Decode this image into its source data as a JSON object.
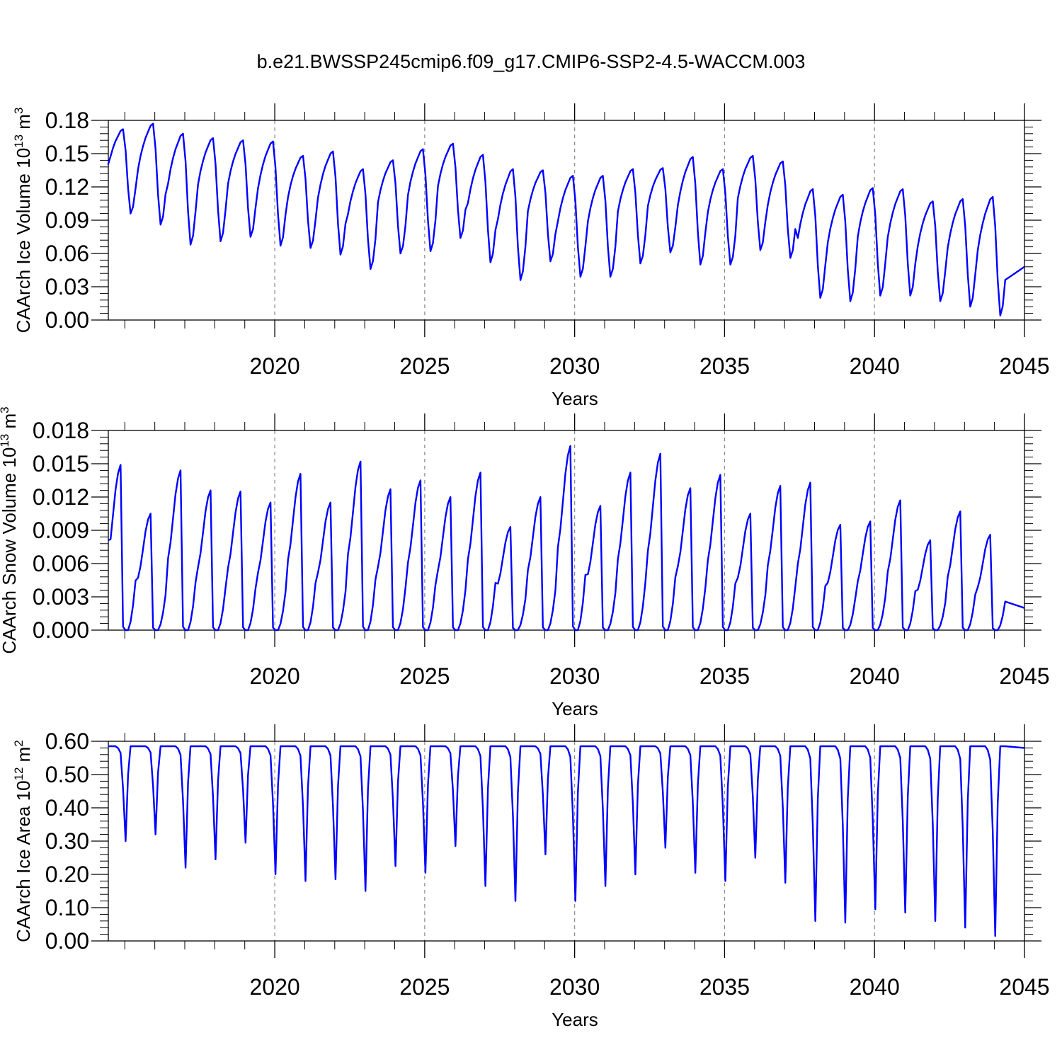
{
  "figure": {
    "title": "b.e21.BWSSP245cmip6.f09_g17.CMIP6-SSP2-4.5-WACCM.003"
  },
  "chart_data": [
    {
      "type": "line",
      "name": "ice-volume",
      "ylabel_main": "CAArch Ice Volume 10",
      "ylabel_exp": "13",
      "ylabel_unit": " m",
      "ylabel_unit_exp": "3",
      "xlabel": "Years",
      "xlim": [
        2015,
        2045
      ],
      "ylim": [
        0,
        0.18
      ],
      "xticks": [
        2020,
        2025,
        2030,
        2035,
        2040,
        2045
      ],
      "yticks": [
        "0.00",
        "0.03",
        "0.06",
        "0.09",
        "0.12",
        "0.15",
        "0.18"
      ],
      "color": "#0000ff",
      "annual_max": [
        0.172,
        0.177,
        0.168,
        0.164,
        0.162,
        0.161,
        0.148,
        0.152,
        0.136,
        0.144,
        0.154,
        0.159,
        0.149,
        0.136,
        0.135,
        0.13,
        0.13,
        0.136,
        0.137,
        0.147,
        0.136,
        0.148,
        0.143,
        0.118,
        0.113,
        0.119,
        0.118,
        0.107,
        0.109,
        0.111
      ],
      "annual_min": [
        0.096,
        0.086,
        0.068,
        0.071,
        0.075,
        0.067,
        0.065,
        0.059,
        0.046,
        0.06,
        0.062,
        0.074,
        0.052,
        0.036,
        0.053,
        0.039,
        0.039,
        0.051,
        0.061,
        0.05,
        0.05,
        0.063,
        0.056,
        0.02,
        0.017,
        0.022,
        0.022,
        0.017,
        0.012,
        0.004
      ],
      "start_value": 0.14,
      "end_value": 0.048
    },
    {
      "type": "line",
      "name": "snow-volume",
      "ylabel_main": "CAArch Snow Volume 10",
      "ylabel_exp": "13",
      "ylabel_unit": " m",
      "ylabel_unit_exp": "3",
      "xlabel": "Years",
      "xlim": [
        2015,
        2045
      ],
      "ylim": [
        0,
        0.018
      ],
      "xticks": [
        2020,
        2025,
        2030,
        2035,
        2040,
        2045
      ],
      "yticks": [
        "0.000",
        "0.003",
        "0.006",
        "0.009",
        "0.012",
        "0.015",
        "0.018"
      ],
      "color": "#0000ff",
      "annual_max": [
        0.0149,
        0.0105,
        0.0144,
        0.0126,
        0.0125,
        0.0115,
        0.0141,
        0.0115,
        0.0152,
        0.0127,
        0.0135,
        0.012,
        0.0142,
        0.0093,
        0.012,
        0.0166,
        0.0112,
        0.0142,
        0.0159,
        0.0128,
        0.014,
        0.0105,
        0.013,
        0.0133,
        0.0095,
        0.0098,
        0.0117,
        0.0081,
        0.0107,
        0.0086
      ],
      "annual_min": [
        0.0,
        0.0,
        0.0,
        0.0,
        0.0,
        0.0,
        0.0,
        0.0,
        0.0,
        0.0,
        0.0,
        0.0,
        0.0,
        0.0,
        0.0,
        0.0,
        0.0,
        0.0,
        0.0,
        0.0,
        0.0,
        0.0,
        0.0,
        0.0,
        0.0,
        0.0,
        0.0,
        0.0,
        0.0,
        0.0
      ],
      "start_value": 0.0081,
      "end_value": 0.002
    },
    {
      "type": "line",
      "name": "ice-area",
      "ylabel_main": "CAArch Ice Area 10",
      "ylabel_exp": "12",
      "ylabel_unit": " m",
      "ylabel_unit_exp": "2",
      "xlabel": "Years",
      "xlim": [
        2015,
        2045
      ],
      "ylim": [
        0,
        0.6
      ],
      "xticks": [
        2020,
        2025,
        2030,
        2035,
        2040,
        2045
      ],
      "yticks": [
        "0.00",
        "0.10",
        "0.20",
        "0.30",
        "0.40",
        "0.50",
        "0.60"
      ],
      "color": "#0000ff",
      "annual_max": [
        0.585,
        0.585,
        0.585,
        0.585,
        0.585,
        0.585,
        0.585,
        0.585,
        0.585,
        0.585,
        0.585,
        0.585,
        0.585,
        0.585,
        0.585,
        0.585,
        0.585,
        0.585,
        0.585,
        0.585,
        0.585,
        0.585,
        0.585,
        0.585,
        0.585,
        0.585,
        0.585,
        0.585,
        0.585,
        0.585
      ],
      "annual_min": [
        0.3,
        0.32,
        0.22,
        0.245,
        0.295,
        0.2,
        0.18,
        0.185,
        0.15,
        0.225,
        0.205,
        0.285,
        0.165,
        0.12,
        0.26,
        0.12,
        0.165,
        0.2,
        0.28,
        0.205,
        0.18,
        0.25,
        0.175,
        0.06,
        0.055,
        0.095,
        0.085,
        0.06,
        0.04,
        0.015
      ],
      "start_value": 0.585,
      "end_value": 0.58
    }
  ]
}
